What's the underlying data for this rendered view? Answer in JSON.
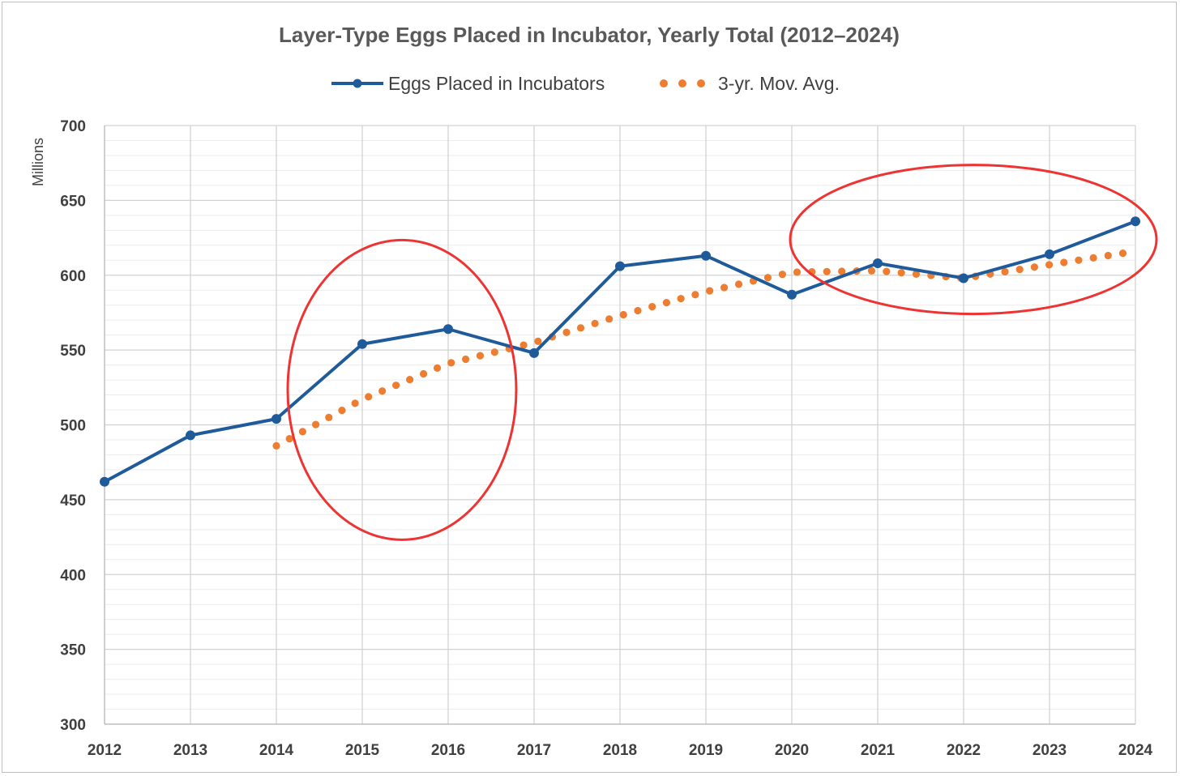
{
  "chart_data": {
    "type": "line",
    "title": "Layer-Type Eggs Placed in Incubator, Yearly Total (2012–2024)",
    "xlabel": "",
    "ylabel": "Millions",
    "x": [
      "2012",
      "2013",
      "2014",
      "2015",
      "2016",
      "2017",
      "2018",
      "2019",
      "2020",
      "2021",
      "2022",
      "2023",
      "2024"
    ],
    "ylim": [
      300,
      700
    ],
    "yticks": [
      300,
      350,
      400,
      450,
      500,
      550,
      600,
      650,
      700
    ],
    "grid": true,
    "legend": "top-center",
    "series": [
      {
        "name": "Eggs Placed in Incubators",
        "style": "solid-line-markers",
        "color": "#1f5b9b",
        "values": [
          462,
          493,
          504,
          554,
          564,
          548,
          606,
          613,
          587,
          608,
          598,
          614,
          636
        ]
      },
      {
        "name": "3-yr. Mov. Avg.",
        "style": "dotted",
        "color": "#ed7d31",
        "values": [
          null,
          null,
          486,
          517,
          541,
          555,
          573,
          589,
          602,
          603,
          598,
          607,
          616
        ]
      }
    ],
    "annotations": [
      {
        "shape": "ellipse",
        "color": "#ee3333",
        "center": [
          "2015",
          525
        ],
        "note": "red circle around 2014–2016 rise"
      },
      {
        "shape": "ellipse",
        "color": "#ee3333",
        "center": [
          "2022",
          625
        ],
        "note": "red circle around 2020–2024"
      }
    ]
  }
}
